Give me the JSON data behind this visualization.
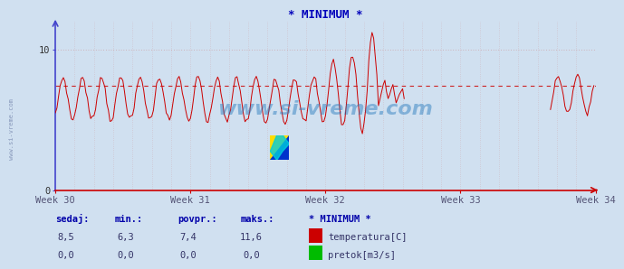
{
  "title": "* MINIMUM *",
  "title_color": "#0000bb",
  "bg_color": "#d0e0f0",
  "plot_bg_color": "#d0e0f0",
  "grid_color": "#cc8888",
  "axis_color_x": "#cc0000",
  "axis_color_y": "#4444cc",
  "temp_color": "#cc0000",
  "flow_color": "#00bb00",
  "avg_line_color": "#cc0000",
  "avg_value": 7.4,
  "y_min": 0,
  "y_max": 12,
  "y_ticks": [
    0,
    10
  ],
  "x_tick_labels": [
    "Week 30",
    "Week 31",
    "Week 32",
    "Week 33",
    "Week 34"
  ],
  "watermark": "www.si-vreme.com",
  "watermark_color": "#2277bb",
  "footer_labels": [
    "sedaj:",
    "min.:",
    "povpr.:",
    "maks.:"
  ],
  "footer_values_temp": [
    "8,5",
    "6,3",
    "7,4",
    "11,6"
  ],
  "footer_values_flow": [
    "0,0",
    "0,0",
    "0,0",
    "0,0"
  ],
  "legend_title": "* MINIMUM *",
  "legend_temp": "temperatura[C]",
  "legend_flow": "pretok[m3/s]",
  "n_points": 336,
  "left_label": "www.si-vreme.com"
}
